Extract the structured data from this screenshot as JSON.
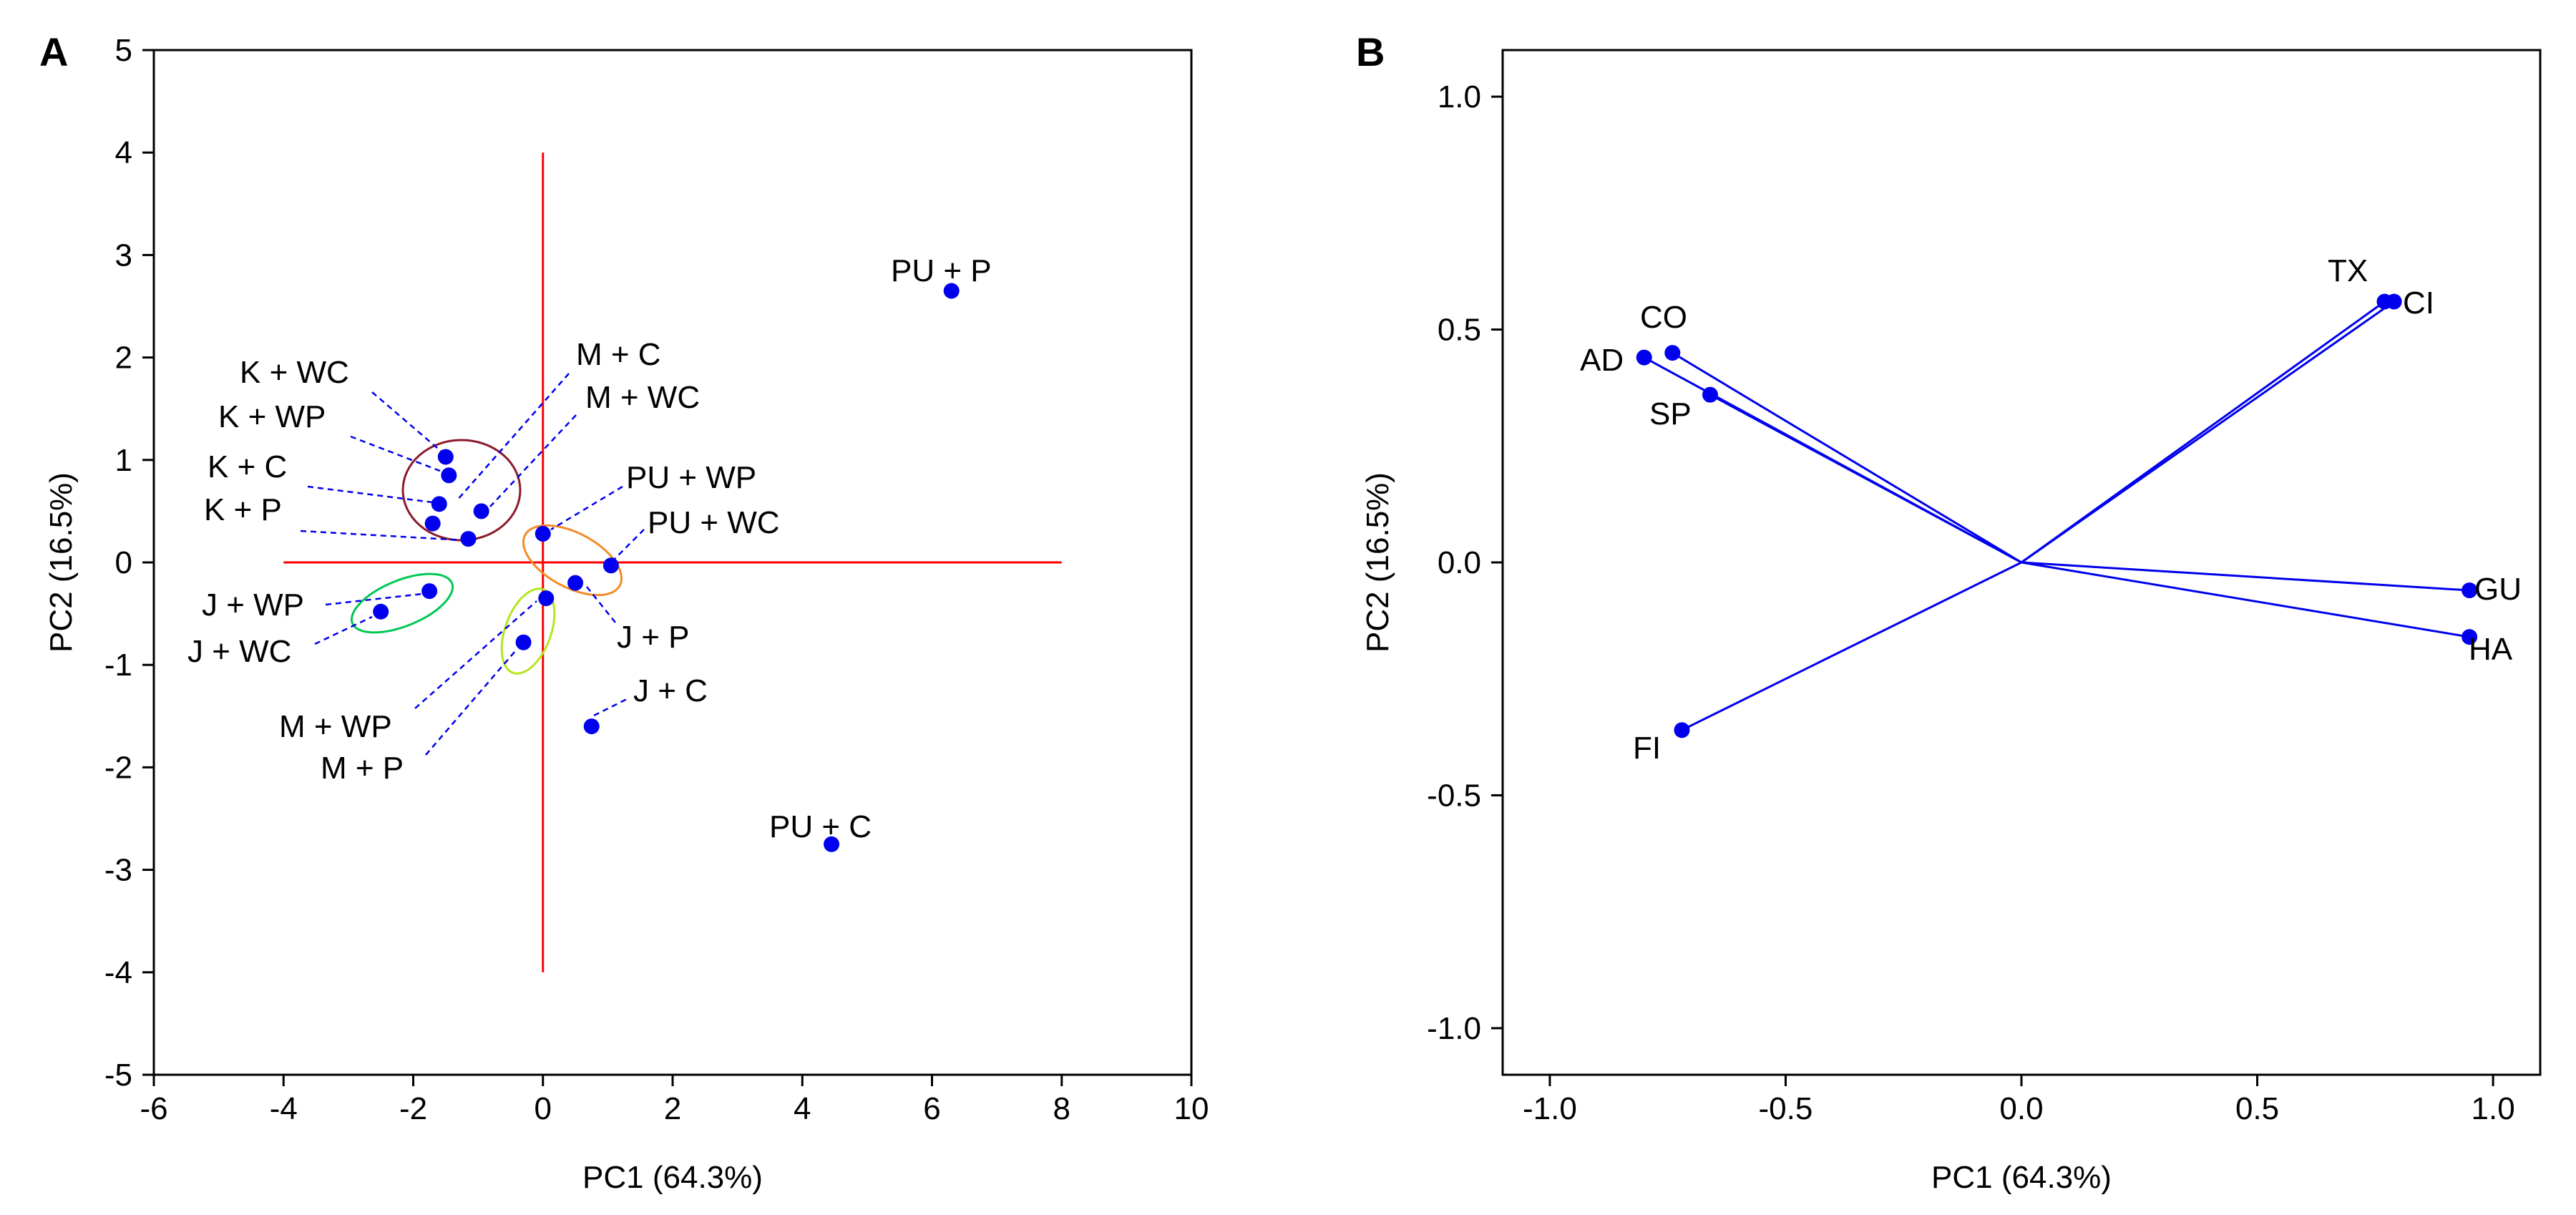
{
  "chart_data": [
    {
      "panel": "A",
      "type": "scatter",
      "xlabel": "PC1 (64.3%)",
      "ylabel": "PC2 (16.5%)",
      "xlim": [
        -6,
        10
      ],
      "ylim": [
        -5,
        5
      ],
      "xticks": [
        -6,
        -4,
        -2,
        0,
        2,
        4,
        6,
        8,
        10
      ],
      "yticks": [
        -5,
        -4,
        -3,
        -2,
        -1,
        0,
        1,
        2,
        3,
        4,
        5
      ],
      "reference_lines": [
        {
          "axis": "horizontal",
          "y": 0,
          "x_from": -4,
          "x_to": 8,
          "color": "#ff0000"
        },
        {
          "axis": "vertical",
          "x": 0,
          "y_from": -4,
          "y_to": 4,
          "color": "#ff0000"
        }
      ],
      "points": [
        {
          "label": "K + WC",
          "x": -1.5,
          "y": 1.03
        },
        {
          "label": "K + WP",
          "x": -1.45,
          "y": 0.85
        },
        {
          "label": "K + C",
          "x": -1.6,
          "y": 0.57
        },
        {
          "label": "K + P",
          "x": -1.7,
          "y": 0.38
        },
        {
          "label": "M + C",
          "x": -0.95,
          "y": 0.5
        },
        {
          "label": "M + WC",
          "x": -1.15,
          "y": 0.23
        },
        {
          "label": "PU + WP",
          "x": 0.0,
          "y": 0.28
        },
        {
          "label": "PU + WC",
          "x": 1.05,
          "y": -0.03
        },
        {
          "label": "J + P",
          "x": 0.5,
          "y": -0.2
        },
        {
          "label": "J + C",
          "x": 0.75,
          "y": -1.6
        },
        {
          "label": "J + WP",
          "x": -1.75,
          "y": -0.28
        },
        {
          "label": "J + WC",
          "x": -2.5,
          "y": -0.48
        },
        {
          "label": "M + WP",
          "x": 0.05,
          "y": -0.35
        },
        {
          "label": "M + P",
          "x": -0.3,
          "y": -0.78
        },
        {
          "label": "PU + P",
          "x": 6.3,
          "y": 2.65
        },
        {
          "label": "PU + C",
          "x": 4.45,
          "y": -2.75
        }
      ],
      "groups": [
        {
          "name": "K / M cluster",
          "color": "#8b1a2b"
        },
        {
          "name": "PU + WP / PU + WC",
          "color": "#f28c28"
        },
        {
          "name": "J + WP / J + WC",
          "color": "#00c853"
        },
        {
          "name": "M + WP / M + P",
          "color": "#b5e61d"
        }
      ],
      "point_color": "#0000ee",
      "leader_color": "#0000ee"
    },
    {
      "panel": "B",
      "type": "scatter",
      "subtype": "loading-vectors",
      "xlabel": "PC1 (64.3%)",
      "ylabel": "PC2 (16.5%)",
      "xlim": [
        -1.1,
        1.1
      ],
      "ylim": [
        -1.1,
        1.1
      ],
      "xticks": [
        -1.0,
        -0.5,
        0.0,
        0.5,
        1.0
      ],
      "yticks": [
        -1.0,
        -0.5,
        0.0,
        0.5,
        1.0
      ],
      "tick_labels": [
        "-1.0",
        "-0.5",
        "0.0",
        "0.5",
        "1.0"
      ],
      "origin": [
        0,
        0
      ],
      "vectors": [
        {
          "label": "CO",
          "x": -0.74,
          "y": 0.45
        },
        {
          "label": "AD",
          "x": -0.8,
          "y": 0.44
        },
        {
          "label": "SP",
          "x": -0.66,
          "y": 0.36
        },
        {
          "label": "TX",
          "x": 0.77,
          "y": 0.56
        },
        {
          "label": "CI",
          "x": 0.79,
          "y": 0.56
        },
        {
          "label": "GU",
          "x": 0.95,
          "y": -0.06
        },
        {
          "label": "HA",
          "x": 0.95,
          "y": -0.16
        },
        {
          "label": "FI",
          "x": -0.72,
          "y": -0.36
        }
      ],
      "point_color": "#0000ee",
      "line_color": "#0000ee"
    }
  ]
}
